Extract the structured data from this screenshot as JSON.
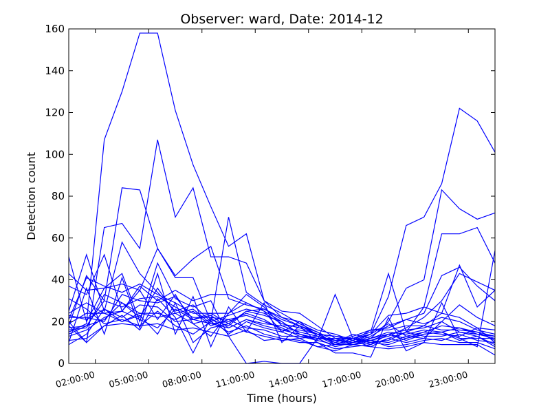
{
  "chart_data": {
    "type": "line",
    "title": "Observer: ward, Date: 2014-12",
    "xlabel": "Time (hours)",
    "ylabel": "Detection count",
    "xlim": [
      0.5,
      24.5
    ],
    "ylim": [
      0,
      160
    ],
    "yticks": [
      0,
      20,
      40,
      60,
      80,
      100,
      120,
      140,
      160
    ],
    "xticks": [
      {
        "value": 2,
        "label": "02:00:00"
      },
      {
        "value": 5,
        "label": "05:00:00"
      },
      {
        "value": 8,
        "label": "08:00:00"
      },
      {
        "value": 11,
        "label": "11:00:00"
      },
      {
        "value": 14,
        "label": "14:00:00"
      },
      {
        "value": 17,
        "label": "17:00:00"
      },
      {
        "value": 20,
        "label": "20:00:00"
      },
      {
        "value": 23,
        "label": "23:00:00"
      }
    ],
    "grid": false,
    "line_color": "#0000ff",
    "x": [
      0.5,
      1.5,
      2.5,
      3.5,
      4.5,
      5.5,
      6.5,
      7.5,
      8.5,
      9.5,
      10.5,
      11.5,
      12.5,
      13.5,
      14.5,
      15.5,
      16.5,
      17.5,
      18.5,
      19.5,
      20.5,
      21.5,
      22.5,
      23.5,
      24.5
    ],
    "series": [
      {
        "values": [
          15,
          19,
          107,
          130,
          158,
          158,
          121,
          95,
          75,
          56,
          62,
          30,
          25,
          24,
          18,
          12,
          10,
          14,
          32,
          66,
          70,
          86,
          122,
          116,
          101
        ]
      },
      {
        "values": [
          20,
          10,
          65,
          67,
          55,
          107,
          70,
          84,
          51,
          51,
          48,
          30,
          22,
          18,
          14,
          10,
          9,
          12,
          20,
          36,
          40,
          83,
          74,
          69,
          72
        ]
      },
      {
        "values": [
          17,
          18,
          30,
          84,
          83,
          55,
          41,
          41,
          20,
          70,
          34,
          28,
          24,
          19,
          15,
          11,
          12,
          14,
          23,
          24,
          27,
          62,
          62,
          65,
          48
        ]
      },
      {
        "values": [
          51,
          20,
          36,
          43,
          20,
          48,
          31,
          27,
          30,
          13,
          0,
          1,
          0,
          0,
          12,
          8,
          10,
          11,
          13,
          17,
          22,
          30,
          43,
          39,
          35
        ]
      },
      {
        "values": [
          43,
          35,
          36,
          38,
          35,
          55,
          42,
          50,
          56,
          31,
          28,
          26,
          22,
          20,
          16,
          14,
          11,
          16,
          17,
          21,
          24,
          42,
          46,
          37,
          30
        ]
      },
      {
        "values": [
          37,
          33,
          52,
          25,
          37,
          30,
          35,
          30,
          33,
          33,
          29,
          25,
          20,
          14,
          11,
          33,
          12,
          15,
          43,
          15,
          18,
          24,
          47,
          27,
          35
        ]
      },
      {
        "values": [
          25,
          52,
          25,
          58,
          43,
          34,
          25,
          28,
          20,
          23,
          26,
          24,
          19,
          17,
          14,
          13,
          12,
          11,
          14,
          16,
          17,
          20,
          28,
          22,
          18
        ]
      },
      {
        "values": [
          21,
          41,
          37,
          34,
          38,
          33,
          29,
          24,
          24,
          19,
          25,
          26,
          21,
          18,
          15,
          9,
          11,
          8,
          12,
          15,
          27,
          24,
          22,
          17,
          16
        ]
      },
      {
        "values": [
          18,
          42,
          30,
          27,
          31,
          32,
          27,
          22,
          22,
          21,
          23,
          20,
          17,
          13,
          12,
          11,
          10,
          13,
          18,
          21,
          19,
          22,
          20,
          16,
          14
        ]
      },
      {
        "values": [
          22,
          22,
          20,
          33,
          30,
          29,
          32,
          21,
          24,
          24,
          33,
          27,
          18,
          18,
          14,
          13,
          11,
          14,
          19,
          13,
          15,
          18,
          17,
          14,
          13
        ]
      },
      {
        "values": [
          19,
          24,
          24,
          25,
          35,
          21,
          33,
          19,
          13,
          24,
          29,
          25,
          15,
          20,
          13,
          10,
          13,
          16,
          16,
          18,
          18,
          16,
          16,
          15,
          13
        ]
      },
      {
        "values": [
          16,
          17,
          33,
          29,
          24,
          22,
          24,
          19,
          21,
          18,
          25,
          23,
          20,
          14,
          12,
          12,
          12,
          11,
          10,
          13,
          12,
          20,
          15,
          14,
          12
        ]
      },
      {
        "values": [
          23,
          21,
          26,
          22,
          28,
          27,
          20,
          21,
          19,
          20,
          24,
          21,
          16,
          16,
          14,
          10,
          14,
          12,
          15,
          14,
          16,
          15,
          17,
          15,
          11
        ]
      },
      {
        "values": [
          14,
          18,
          21,
          29,
          22,
          36,
          24,
          26,
          19,
          17,
          21,
          19,
          18,
          15,
          13,
          11,
          10,
          12,
          14,
          12,
          15,
          14,
          13,
          17,
          10
        ]
      },
      {
        "values": [
          13,
          16,
          22,
          25,
          21,
          17,
          26,
          21,
          23,
          17,
          21,
          18,
          16,
          14,
          12,
          12,
          9,
          10,
          11,
          15,
          13,
          13,
          15,
          13,
          9
        ]
      },
      {
        "values": [
          24,
          29,
          24,
          20,
          24,
          24,
          21,
          25,
          18,
          21,
          17,
          16,
          13,
          13,
          11,
          9,
          12,
          9,
          14,
          11,
          14,
          15,
          12,
          12,
          12
        ]
      },
      {
        "values": [
          11,
          12,
          18,
          23,
          16,
          31,
          22,
          5,
          22,
          14,
          20,
          17,
          15,
          12,
          13,
          9,
          12,
          10,
          9,
          12,
          14,
          15,
          11,
          13,
          8
        ]
      },
      {
        "values": [
          31,
          26,
          19,
          21,
          18,
          25,
          18,
          14,
          20,
          15,
          18,
          14,
          12,
          10,
          10,
          7,
          8,
          9,
          12,
          10,
          12,
          11,
          14,
          11,
          10
        ]
      },
      {
        "values": [
          9,
          14,
          26,
          20,
          23,
          14,
          29,
          10,
          17,
          19,
          15,
          13,
          11,
          12,
          8,
          9,
          9,
          11,
          8,
          9,
          11,
          12,
          10,
          10,
          7
        ]
      },
      {
        "values": [
          18,
          10,
          18,
          19,
          18,
          19,
          16,
          17,
          15,
          13,
          16,
          11,
          12,
          11,
          8,
          6,
          9,
          8,
          7,
          8,
          10,
          9,
          9,
          9,
          4
        ]
      },
      {
        "values": [
          10,
          36,
          14,
          41,
          17,
          43,
          14,
          32,
          8,
          27,
          15,
          29,
          10,
          18,
          10,
          5,
          5,
          3,
          22,
          6,
          10,
          29,
          12,
          8,
          54
        ]
      }
    ]
  }
}
